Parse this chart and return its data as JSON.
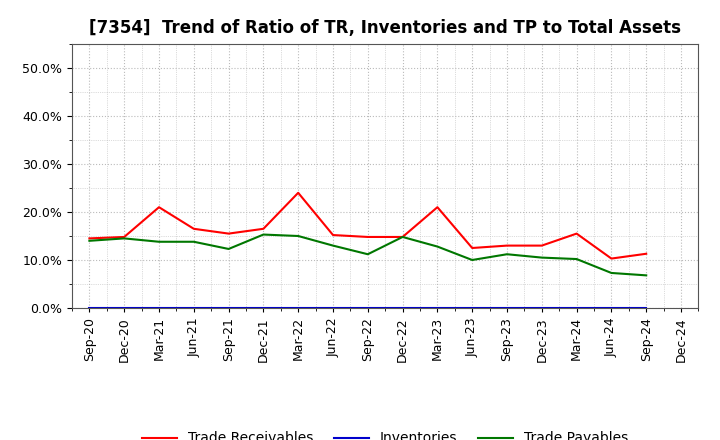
{
  "title": "[7354]  Trend of Ratio of TR, Inventories and TP to Total Assets",
  "x_labels": [
    "Sep-20",
    "Dec-20",
    "Mar-21",
    "Jun-21",
    "Sep-21",
    "Dec-21",
    "Mar-22",
    "Jun-22",
    "Sep-22",
    "Dec-22",
    "Mar-23",
    "Jun-23",
    "Sep-23",
    "Dec-23",
    "Mar-24",
    "Jun-24",
    "Sep-24",
    "Dec-24"
  ],
  "trade_receivables": [
    0.145,
    0.148,
    0.21,
    0.165,
    0.155,
    0.165,
    0.24,
    0.152,
    0.148,
    0.148,
    0.21,
    0.125,
    0.13,
    0.13,
    0.155,
    0.103,
    0.113,
    null
  ],
  "inventories": [
    null,
    null,
    null,
    null,
    null,
    null,
    null,
    null,
    null,
    null,
    null,
    null,
    null,
    null,
    null,
    null,
    null,
    null
  ],
  "trade_payables": [
    0.14,
    0.145,
    0.138,
    0.138,
    0.123,
    0.153,
    0.15,
    0.13,
    0.112,
    0.148,
    0.128,
    0.1,
    0.112,
    0.105,
    0.102,
    0.073,
    0.068,
    null
  ],
  "line_colors": {
    "trade_receivables": "#FF0000",
    "inventories": "#0000CC",
    "trade_payables": "#007700"
  },
  "ylim": [
    0.0,
    0.55
  ],
  "yticks": [
    0.0,
    0.1,
    0.2,
    0.3,
    0.4,
    0.5
  ],
  "background_color": "#FFFFFF",
  "plot_bg_color": "#FFFFFF",
  "grid_color": "#BBBBBB",
  "legend_labels": [
    "Trade Receivables",
    "Inventories",
    "Trade Payables"
  ],
  "title_fontsize": 12,
  "tick_fontsize": 9,
  "legend_fontsize": 10
}
